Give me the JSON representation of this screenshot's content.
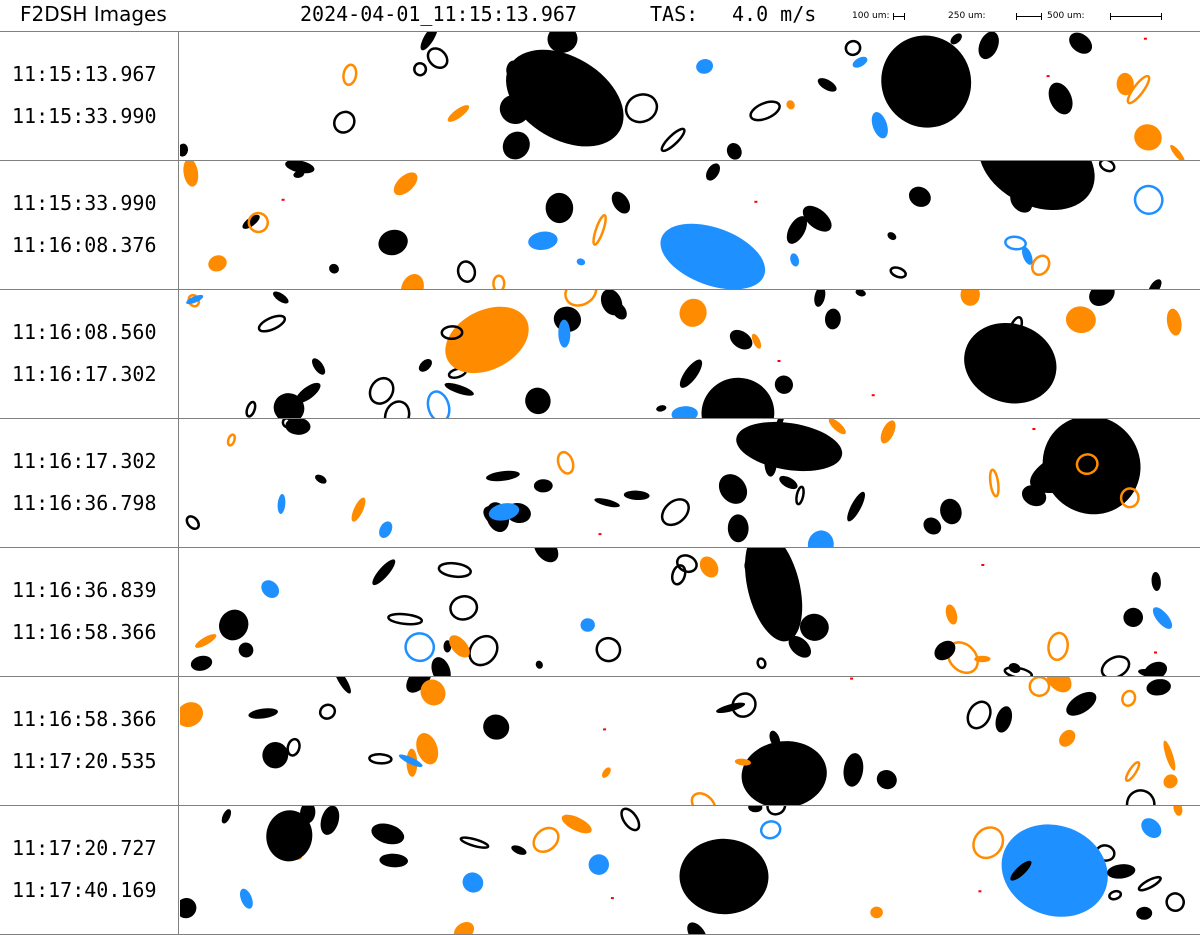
{
  "header": {
    "title": "F2DSH Images",
    "datetime": "2024-04-01_11:15:13.967",
    "tas_label": "TAS:",
    "tas_value": "4.0 m/s",
    "scale_bars": [
      "100 um:",
      "250 um:",
      "500 um:"
    ]
  },
  "colors": {
    "black_particle": "#000000",
    "orange_particle": "#ff8c00",
    "blue_particle": "#1e90ff",
    "red_particle": "#ff0000",
    "divider": "#808080"
  },
  "strips": [
    {
      "start": "11:15:13.967",
      "end": "11:15:33.990"
    },
    {
      "start": "11:15:33.990",
      "end": "11:16:08.376"
    },
    {
      "start": "11:16:08.560",
      "end": "11:16:17.302"
    },
    {
      "start": "11:16:17.302",
      "end": "11:16:36.798"
    },
    {
      "start": "11:16:36.839",
      "end": "11:16:58.366"
    },
    {
      "start": "11:16:58.366",
      "end": "11:17:20.535"
    },
    {
      "start": "11:17:20.727",
      "end": "11:17:40.169"
    }
  ]
}
